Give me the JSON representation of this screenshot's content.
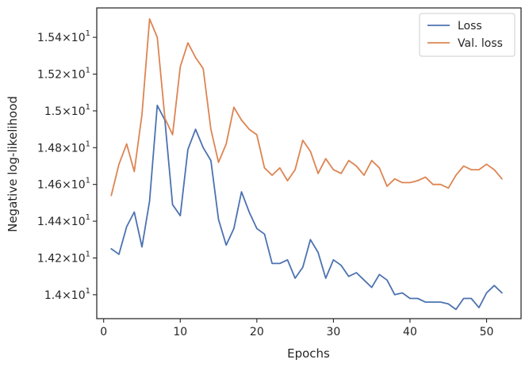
{
  "chart_data": {
    "type": "line",
    "title": "",
    "xlabel": "Epochs",
    "ylabel": "Negative log-likelihood",
    "xlim": [
      -0.9,
      54.5
    ],
    "ylim": [
      13.87,
      15.56
    ],
    "xticks": [
      0,
      10,
      20,
      30,
      40,
      50
    ],
    "xtick_labels": [
      "0",
      "10",
      "20",
      "30",
      "40",
      "50"
    ],
    "yticks": [
      14.0,
      14.2,
      14.4,
      14.6,
      14.8,
      15.0,
      15.2,
      15.4
    ],
    "ytick_labels": [
      {
        "mantissa": "1.4",
        "exponent": "1"
      },
      {
        "mantissa": "1.42",
        "exponent": "1"
      },
      {
        "mantissa": "1.44",
        "exponent": "1"
      },
      {
        "mantissa": "1.46",
        "exponent": "1"
      },
      {
        "mantissa": "1.48",
        "exponent": "1"
      },
      {
        "mantissa": "1.5",
        "exponent": "1"
      },
      {
        "mantissa": "1.52",
        "exponent": "1"
      },
      {
        "mantissa": "1.54",
        "exponent": "1"
      }
    ],
    "grid": false,
    "legend_position": "top-right",
    "x": [
      1,
      2,
      3,
      4,
      5,
      6,
      7,
      8,
      9,
      10,
      11,
      12,
      13,
      14,
      15,
      16,
      17,
      18,
      19,
      20,
      21,
      22,
      23,
      24,
      25,
      26,
      27,
      28,
      29,
      30,
      31,
      32,
      33,
      34,
      35,
      36,
      37,
      38,
      39,
      40,
      41,
      42,
      43,
      44,
      45,
      46,
      47,
      48,
      49,
      50,
      51,
      52
    ],
    "series": [
      {
        "name": "Loss",
        "color": "#4c72b0",
        "values": [
          14.25,
          14.22,
          14.37,
          14.45,
          14.26,
          14.51,
          15.03,
          14.95,
          14.49,
          14.43,
          14.79,
          14.9,
          14.8,
          14.73,
          14.41,
          14.27,
          14.36,
          14.56,
          14.45,
          14.36,
          14.33,
          14.17,
          14.17,
          14.19,
          14.09,
          14.15,
          14.3,
          14.23,
          14.09,
          14.19,
          14.16,
          14.1,
          14.12,
          14.08,
          14.04,
          14.11,
          14.08,
          14.0,
          14.01,
          13.98,
          13.98,
          13.96,
          13.96,
          13.96,
          13.95,
          13.92,
          13.98,
          13.98,
          13.93,
          14.01,
          14.05,
          14.01
        ]
      },
      {
        "name": "Val. loss",
        "color": "#dd8452",
        "values": [
          14.54,
          14.71,
          14.82,
          14.67,
          14.98,
          15.5,
          15.4,
          14.96,
          14.87,
          15.24,
          15.37,
          15.29,
          15.23,
          14.9,
          14.72,
          14.82,
          15.02,
          14.95,
          14.9,
          14.87,
          14.69,
          14.65,
          14.69,
          14.62,
          14.68,
          14.84,
          14.78,
          14.66,
          14.74,
          14.68,
          14.66,
          14.73,
          14.7,
          14.65,
          14.73,
          14.69,
          14.59,
          14.63,
          14.61,
          14.61,
          14.62,
          14.64,
          14.6,
          14.6,
          14.58,
          14.65,
          14.7,
          14.68,
          14.68,
          14.71,
          14.68,
          14.63
        ]
      }
    ]
  }
}
